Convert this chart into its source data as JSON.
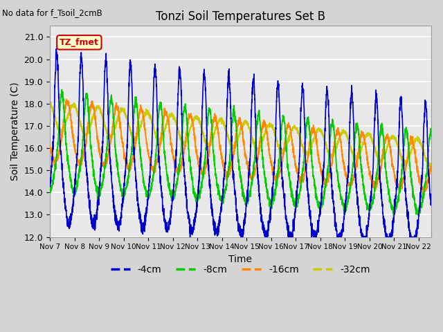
{
  "title": "Tonzi Soil Temperatures Set B",
  "no_data_label": "No data for f_Tsoil_2cmB",
  "annotation_box": "TZ_fmet",
  "xlabel": "Time",
  "ylabel": "Soil Temperature (C)",
  "ylim": [
    12.0,
    21.5
  ],
  "yticks": [
    12.0,
    13.0,
    14.0,
    15.0,
    16.0,
    17.0,
    18.0,
    19.0,
    20.0,
    21.0
  ],
  "xlim_days": [
    0,
    15.5
  ],
  "x_tick_labels": [
    "Nov 7",
    "Nov 8",
    "Nov 9",
    "Nov 10",
    "Nov 11",
    "Nov 12",
    "Nov 13",
    "Nov 14",
    "Nov 15",
    "Nov 16",
    "Nov 17",
    "Nov 18",
    "Nov 19",
    "Nov 20",
    "Nov 21",
    "Nov 22"
  ],
  "colors": {
    "4cm": "#0000CC",
    "8cm": "#00CC00",
    "16cm": "#FF8800",
    "32cm": "#CCCC00"
  },
  "legend_labels": [
    "-4cm",
    "-8cm",
    "-16cm",
    "-32cm"
  ],
  "fig_bg": "#D4D4D4",
  "plot_bg": "#E8E8E8",
  "grid_color": "#FFFFFF",
  "annotation_bg": "#FFFFCC",
  "annotation_border": "#CC0000",
  "annotation_text_color": "#CC0000"
}
